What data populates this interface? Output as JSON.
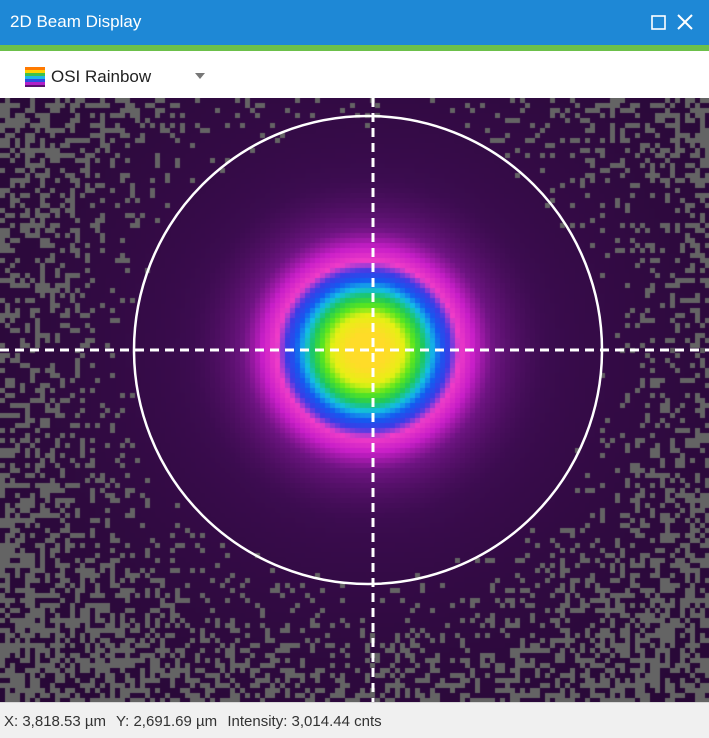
{
  "window": {
    "title": "2D Beam Display",
    "maximize_icon": "maximize-icon",
    "close_icon": "close-icon",
    "colors": {
      "titlebar": "#1e88d6",
      "accent_strip": "#6cc04a"
    }
  },
  "toolbar": {
    "colormap_select": {
      "selected": "OSI Rainbow",
      "icon": "rainbow-swatch-icon",
      "caret_icon": "chevron-down-icon"
    }
  },
  "beam_view": {
    "colormap": "OSI Rainbow",
    "crosshair": "dashed white horizontal and vertical lines through beam center",
    "aperture_circle": "white outline circle around beam",
    "background_noise": "gray pixel noise around edges",
    "colors": {
      "background": "#2a0a3a",
      "noise": "#6a6a6a",
      "overlay": "#ffffff"
    }
  },
  "status": {
    "x": "X: 3,818.53 µm",
    "y": "Y: 2,691.69 µm",
    "intensity": "Intensity: 3,014.44 cnts"
  }
}
